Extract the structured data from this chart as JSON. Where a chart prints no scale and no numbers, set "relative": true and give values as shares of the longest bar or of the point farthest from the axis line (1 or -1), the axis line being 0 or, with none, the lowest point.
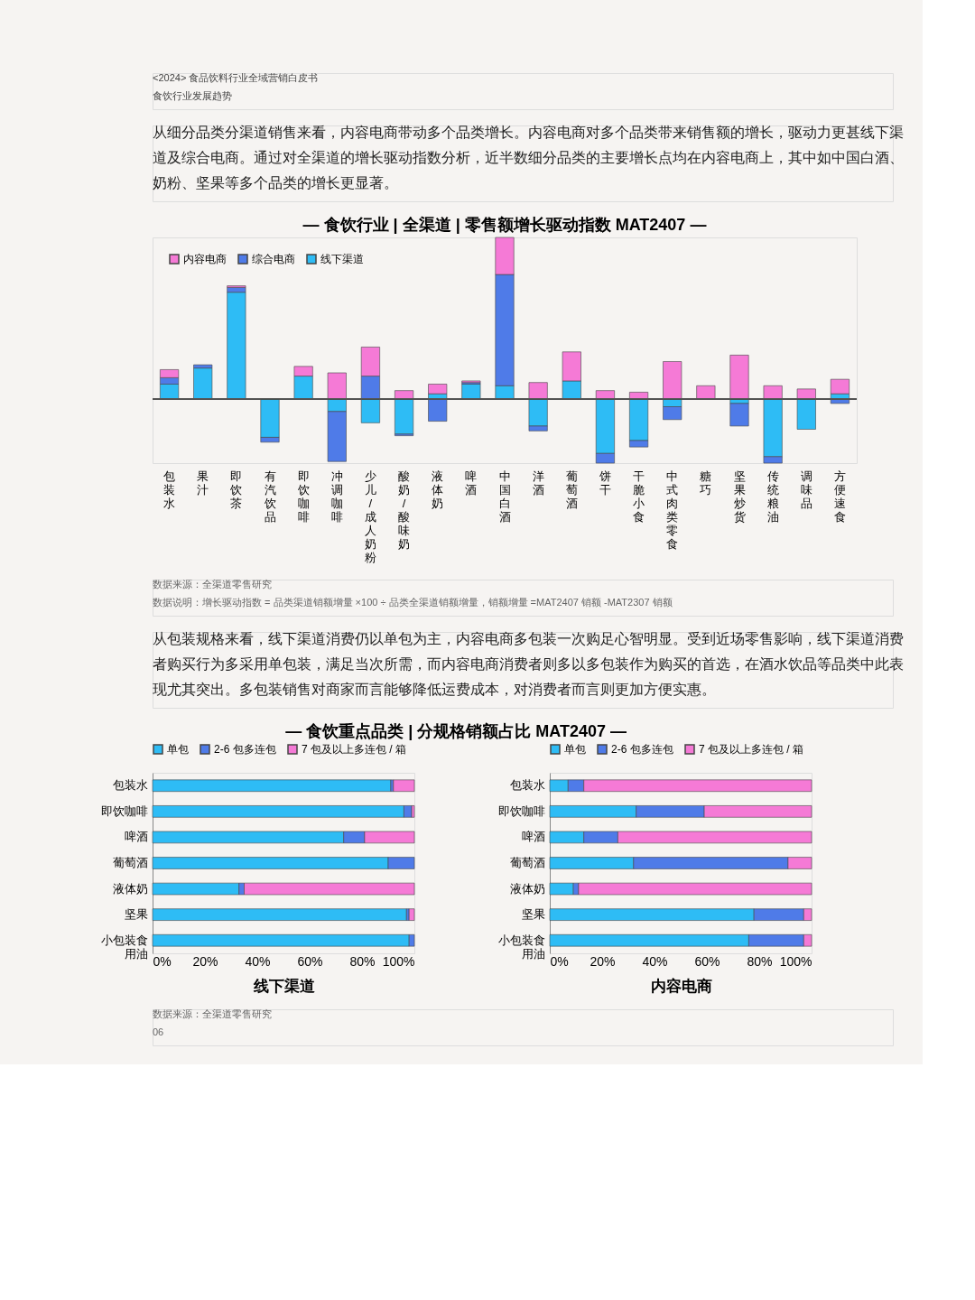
{
  "chart_data": [
    {
      "type": "bar",
      "title": "— 食饮行业 | 全渠道 | 零售额增长驱动指数 MAT2407 —",
      "relative": true,
      "stacked": true,
      "legend": "top left",
      "annotations": [
        "<2024> 食品饮料行业全域营销白皮书",
        "食饮行业发展趋势",
        "从细分品类分渠道销售来看，内容电商带动多个品类增长。内容电商对多个品类带来销售额的增长，驱动力更甚线下渠道及综合电商。通过对全渠道的增长驱动指数分析，近半数细分品类的主要增长点均在内容电商上，其中如中国白酒、奶粉、坚果等多个品类的增长更显著。",
        "数据来源：全渠道零售研究",
        "数据说明：增长驱动指数 = 品类渠道销额增量 ×100 ÷ 品类全渠道销额增量，销额增量 =MAT2407 销额 -MAT2307 销额"
      ],
      "categories": [
        "包装水",
        "果汁",
        "即饮茶",
        "有汽饮品",
        "即饮咖啡",
        "冲调咖啡",
        "少儿/成人奶粉",
        "酸奶/酸味奶",
        "液体奶",
        "啤酒",
        "中国白酒",
        "洋酒",
        "葡萄酒",
        "饼干",
        "干脆小食",
        "中式肉类零食",
        "糖巧",
        "坚果炒货",
        "传统粮油",
        "调味品",
        "方便速食"
      ],
      "series": [
        {
          "name": "线下渠道",
          "color": "#2ebcf5",
          "values": [
            0.09,
            0.19,
            0.66,
            -0.24,
            0.14,
            -0.08,
            -0.15,
            -0.22,
            0.03,
            0.09,
            0.08,
            -0.17,
            0.11,
            -0.34,
            -0.26,
            -0.05,
            null,
            -0.03,
            -0.36,
            -0.19,
            0.03
          ]
        },
        {
          "name": "综合电商",
          "color": "#4f7be8",
          "values": [
            0.04,
            0.02,
            0.03,
            -0.03,
            null,
            -0.31,
            0.14,
            -0.01,
            -0.14,
            0.01,
            0.69,
            -0.03,
            null,
            -0.06,
            -0.04,
            -0.08,
            null,
            -0.14,
            -0.04,
            null,
            -0.03
          ]
        },
        {
          "name": "内容电商",
          "color": "#f57ad6",
          "values": [
            0.05,
            null,
            0.01,
            null,
            0.06,
            0.16,
            0.18,
            0.05,
            0.06,
            0.01,
            0.23,
            0.1,
            0.18,
            0.05,
            0.04,
            0.23,
            0.08,
            0.27,
            0.08,
            0.06,
            0.09
          ]
        }
      ]
    },
    {
      "type": "bar",
      "title": "— 食饮重点品类 | 分规格销额占比 MAT2407 —",
      "xlabel": "线下渠道",
      "stacked": true,
      "orientation": "horizontal",
      "legend": "top",
      "annotations": [
        "从包装规格来看，线下渠道消费仍以单包为主，内容电商多包装一次购足心智明显。受到近场零售影响，线下渠道消费者购买行为多采用单包装，满足当次所需，而内容电商消费者则多以多包装作为购买的首选，在酒水饮品等品类中此表现尤其突出。多包装销售对商家而言能够降低运费成本，对消费者而言则更加方便实惠。",
        "数据来源：全渠道零售研究",
        "06"
      ],
      "categories": [
        "包装水",
        "即饮咖啡",
        "啤酒",
        "葡萄酒",
        "液体奶",
        "坚果",
        "小包装食用油"
      ],
      "xlim": [
        0,
        100
      ],
      "xticks": [
        {
          "value": 0,
          "label": "0%"
        },
        {
          "value": 20,
          "label": "20%"
        },
        {
          "value": 40,
          "label": "40%"
        },
        {
          "value": 60,
          "label": "60%"
        },
        {
          "value": 80,
          "label": "80%"
        },
        {
          "value": 100,
          "label": "100%"
        }
      ],
      "series": [
        {
          "name": "单包",
          "color": "#2ebcf5",
          "values": [
            91,
            96,
            73,
            90,
            33,
            97,
            98
          ]
        },
        {
          "name": "2-6 包多连包",
          "color": "#4f7be8",
          "values": [
            1,
            3,
            8,
            10,
            2,
            1,
            2
          ]
        },
        {
          "name": "7 包及以上多连包 / 箱",
          "color": "#f57ad6",
          "values": [
            8,
            1,
            19,
            null,
            65,
            2,
            null
          ]
        }
      ]
    },
    {
      "type": "bar",
      "xlabel": "内容电商",
      "stacked": true,
      "orientation": "horizontal",
      "legend": "top",
      "categories": [
        "包装水",
        "即饮咖啡",
        "啤酒",
        "葡萄酒",
        "液体奶",
        "坚果",
        "小包装食用油"
      ],
      "xlim": [
        0,
        100
      ],
      "xticks": [
        {
          "value": 0,
          "label": "0%"
        },
        {
          "value": 20,
          "label": "20%"
        },
        {
          "value": 40,
          "label": "40%"
        },
        {
          "value": 60,
          "label": "60%"
        },
        {
          "value": 80,
          "label": "80%"
        },
        {
          "value": 100,
          "label": "100%"
        }
      ],
      "series": [
        {
          "name": "单包",
          "color": "#2ebcf5",
          "values": [
            7,
            33,
            13,
            32,
            9,
            78,
            76
          ]
        },
        {
          "name": "2-6 包多连包",
          "color": "#4f7be8",
          "values": [
            6,
            26,
            13,
            59,
            2,
            19,
            21
          ]
        },
        {
          "name": "7 包及以上多连包 / 箱",
          "color": "#f57ad6",
          "values": [
            87,
            41,
            74,
            9,
            89,
            3,
            3
          ]
        }
      ]
    }
  ]
}
